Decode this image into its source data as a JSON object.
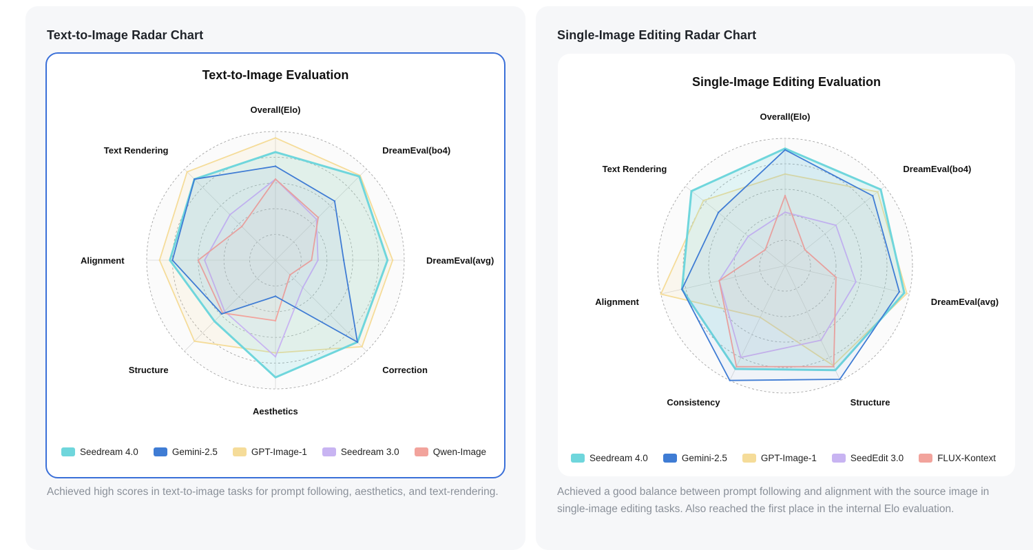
{
  "colors": {
    "seedream4": "#6fd6dc",
    "gemini": "#3f7cd4",
    "gpt": "#f5dc99",
    "seed3": "#c8b4f2",
    "qwen": "#f2a39c"
  },
  "left": {
    "heading": "Text-to-Image Radar Chart",
    "description": "Achieved high scores in text-to-image tasks for prompt following, aesthetics, and text-rendering.",
    "chart_data": {
      "type": "radar",
      "title": "Text-to-Image Evaluation",
      "axes": [
        "Overall(Elo)",
        "DreamEval(bo4)",
        "DreamEval(avg)",
        "Correction",
        "Aesthetics",
        "Structure",
        "Alignment",
        "Text Rendering"
      ],
      "rlim": [
        0,
        1
      ],
      "grid": "dashed circles",
      "legend_position": "bottom",
      "series": [
        {
          "name": "Seedream 4.0",
          "color": "#6fd6dc",
          "values": [
            0.84,
            0.92,
            0.87,
            0.9,
            0.91,
            0.67,
            0.82,
            0.89
          ]
        },
        {
          "name": "Gemini-2.5",
          "color": "#3f7cd4",
          "values": [
            0.73,
            0.65,
            0.53,
            0.9,
            0.28,
            0.59,
            0.8,
            0.89
          ]
        },
        {
          "name": "GPT-Image-1",
          "color": "#f5dc99",
          "values": [
            0.95,
            0.93,
            0.91,
            0.95,
            0.72,
            0.89,
            0.9,
            0.97
          ]
        },
        {
          "name": "Seedream 3.0",
          "color": "#c8b4f2",
          "values": [
            0.63,
            0.45,
            0.33,
            0.3,
            0.75,
            0.56,
            0.55,
            0.5
          ]
        },
        {
          "name": "Qwen-Image",
          "color": "#f2a39c",
          "values": [
            0.63,
            0.47,
            0.28,
            0.16,
            0.47,
            0.58,
            0.6,
            0.37
          ]
        }
      ]
    }
  },
  "right": {
    "heading": "Single-Image Editing Radar Chart",
    "description": "Achieved a good balance between prompt following and alignment with the source image in single-image editing tasks. Also reached the first place in the internal Elo evaluation.",
    "chart_data": {
      "type": "radar",
      "title": "Single-Image Editing Evaluation",
      "axes": [
        "Overall(Elo)",
        "DreamEval(bo4)",
        "DreamEval(avg)",
        "Structure",
        "Consistency",
        "Alignment",
        "Text Rendering"
      ],
      "rlim": [
        0,
        1
      ],
      "grid": "dashed circles",
      "legend_position": "bottom",
      "series": [
        {
          "name": "Seedream 4.0",
          "color": "#6fd6dc",
          "values": [
            0.92,
            0.96,
            0.96,
            0.91,
            0.9,
            0.83,
            0.94
          ]
        },
        {
          "name": "Gemini-2.5",
          "color": "#3f7cd4",
          "values": [
            0.91,
            0.88,
            0.92,
            0.99,
            1.0,
            0.83,
            0.67
          ]
        },
        {
          "name": "GPT-Image-1",
          "color": "#f5dc99",
          "values": [
            0.72,
            0.93,
            0.98,
            0.87,
            0.45,
            1.0,
            0.82
          ]
        },
        {
          "name": "SeedEdit 3.0",
          "color": "#c8b4f2",
          "values": [
            0.42,
            0.51,
            0.57,
            0.65,
            0.8,
            0.53,
            0.37
          ]
        },
        {
          "name": "FLUX-Kontext",
          "color": "#f2a39c",
          "values": [
            0.55,
            0.2,
            0.41,
            0.88,
            0.88,
            0.53,
            0.2
          ]
        }
      ]
    }
  }
}
